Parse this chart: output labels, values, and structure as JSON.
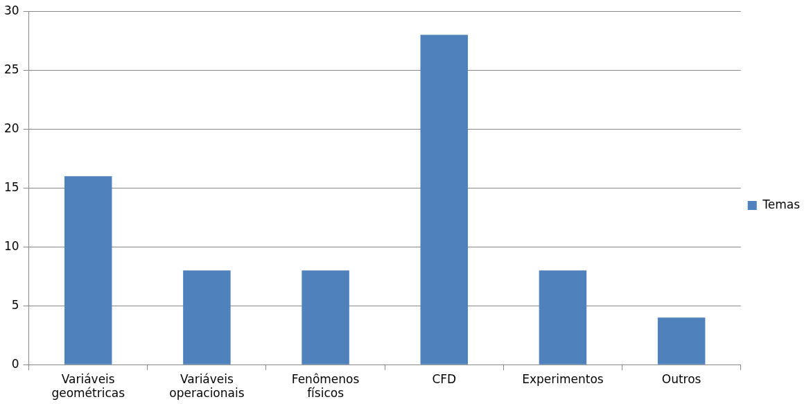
{
  "chart_data": {
    "type": "bar",
    "categories": [
      "Variáveis geométricas",
      "Variáveis operacionais",
      "Fenômenos físicos",
      "CFD",
      "Experimentos",
      "Outros"
    ],
    "series": [
      {
        "name": "Temas",
        "color": "#4f81bd",
        "values": [
          16,
          8,
          8,
          28,
          8,
          4
        ]
      }
    ],
    "ylim": [
      0,
      30
    ],
    "yticks": [
      0,
      5,
      10,
      15,
      20,
      25,
      30
    ],
    "grid": "y",
    "legend": "right"
  }
}
